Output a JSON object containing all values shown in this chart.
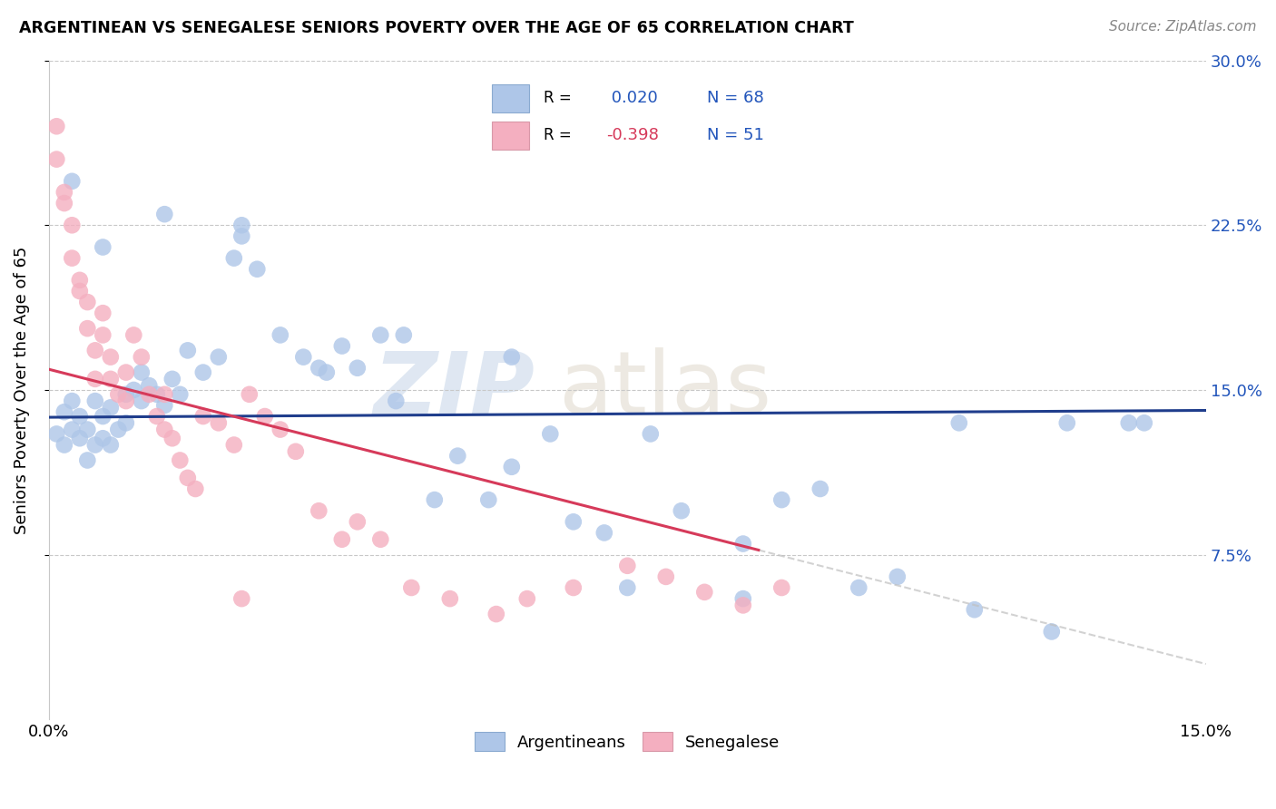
{
  "title": "ARGENTINEAN VS SENEGALESE SENIORS POVERTY OVER THE AGE OF 65 CORRELATION CHART",
  "source": "Source: ZipAtlas.com",
  "ylabel": "Seniors Poverty Over the Age of 65",
  "xlim": [
    0.0,
    0.15
  ],
  "ylim": [
    0.0,
    0.3
  ],
  "legend_label1": "Argentineans",
  "legend_label2": "Senegalese",
  "color_argentina": "#aec6e8",
  "color_senegal": "#f4afc0",
  "line_color_argentina": "#1f3d8c",
  "line_color_senegal": "#d63a5a",
  "watermark_zip": "ZIP",
  "watermark_atlas": "atlas",
  "argentina_r": 0.02,
  "argentina_n": 68,
  "senegal_r": -0.398,
  "senegal_n": 51,
  "argentina_x": [
    0.001,
    0.002,
    0.002,
    0.003,
    0.003,
    0.004,
    0.004,
    0.005,
    0.005,
    0.006,
    0.006,
    0.007,
    0.007,
    0.008,
    0.008,
    0.009,
    0.01,
    0.01,
    0.011,
    0.012,
    0.012,
    0.013,
    0.014,
    0.015,
    0.016,
    0.017,
    0.018,
    0.02,
    0.022,
    0.024,
    0.025,
    0.027,
    0.03,
    0.033,
    0.036,
    0.038,
    0.04,
    0.043,
    0.046,
    0.05,
    0.053,
    0.057,
    0.06,
    0.065,
    0.068,
    0.072,
    0.078,
    0.082,
    0.09,
    0.095,
    0.1,
    0.11,
    0.12,
    0.13,
    0.14,
    0.003,
    0.007,
    0.015,
    0.025,
    0.035,
    0.045,
    0.06,
    0.075,
    0.09,
    0.105,
    0.118,
    0.132,
    0.142
  ],
  "argentina_y": [
    0.13,
    0.125,
    0.14,
    0.132,
    0.145,
    0.128,
    0.138,
    0.132,
    0.118,
    0.125,
    0.145,
    0.138,
    0.128,
    0.142,
    0.125,
    0.132,
    0.148,
    0.135,
    0.15,
    0.145,
    0.158,
    0.152,
    0.148,
    0.143,
    0.155,
    0.148,
    0.168,
    0.158,
    0.165,
    0.21,
    0.225,
    0.205,
    0.175,
    0.165,
    0.158,
    0.17,
    0.16,
    0.175,
    0.175,
    0.1,
    0.12,
    0.1,
    0.165,
    0.13,
    0.09,
    0.085,
    0.13,
    0.095,
    0.08,
    0.1,
    0.105,
    0.065,
    0.05,
    0.04,
    0.135,
    0.245,
    0.215,
    0.23,
    0.22,
    0.16,
    0.145,
    0.115,
    0.06,
    0.055,
    0.06,
    0.135,
    0.135,
    0.135
  ],
  "senegal_x": [
    0.001,
    0.001,
    0.002,
    0.002,
    0.003,
    0.003,
    0.004,
    0.004,
    0.005,
    0.005,
    0.006,
    0.006,
    0.007,
    0.007,
    0.008,
    0.008,
    0.009,
    0.01,
    0.01,
    0.011,
    0.012,
    0.013,
    0.014,
    0.015,
    0.016,
    0.017,
    0.018,
    0.019,
    0.02,
    0.022,
    0.024,
    0.026,
    0.028,
    0.03,
    0.032,
    0.035,
    0.038,
    0.04,
    0.043,
    0.047,
    0.052,
    0.058,
    0.062,
    0.068,
    0.075,
    0.08,
    0.085,
    0.09,
    0.095,
    0.015,
    0.025
  ],
  "senegal_y": [
    0.27,
    0.255,
    0.24,
    0.235,
    0.225,
    0.21,
    0.2,
    0.195,
    0.19,
    0.178,
    0.168,
    0.155,
    0.185,
    0.175,
    0.165,
    0.155,
    0.148,
    0.158,
    0.145,
    0.175,
    0.165,
    0.148,
    0.138,
    0.132,
    0.128,
    0.118,
    0.11,
    0.105,
    0.138,
    0.135,
    0.125,
    0.148,
    0.138,
    0.132,
    0.122,
    0.095,
    0.082,
    0.09,
    0.082,
    0.06,
    0.055,
    0.048,
    0.055,
    0.06,
    0.07,
    0.065,
    0.058,
    0.052,
    0.06,
    0.148,
    0.055
  ]
}
